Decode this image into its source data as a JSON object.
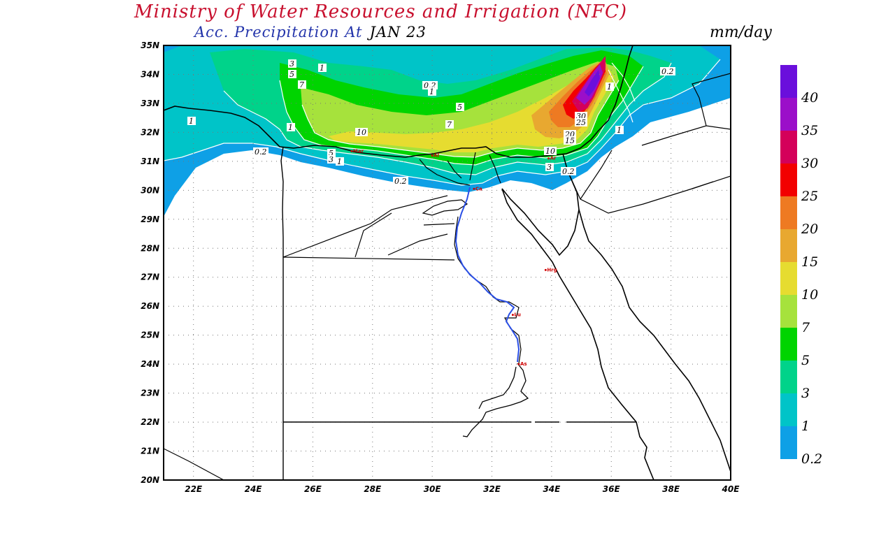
{
  "header": {
    "title": "Ministry of Water Resources and Irrigation (NFC)",
    "subtitle": "Acc. Precipitation  At",
    "date": "JAN 23",
    "units": "mm/day"
  },
  "map": {
    "lat_ticks": [
      "35N",
      "34N",
      "33N",
      "32N",
      "31N",
      "30N",
      "29N",
      "28N",
      "27N",
      "26N",
      "25N",
      "24N",
      "23N",
      "22N",
      "21N",
      "20N"
    ],
    "lon_ticks": [
      "22E",
      "24E",
      "26E",
      "28E",
      "30E",
      "32E",
      "34E",
      "36E",
      "38E",
      "40E"
    ],
    "lat_range": [
      20,
      35
    ],
    "lon_range": [
      21,
      40
    ],
    "grid": "dotted",
    "cities": [
      {
        "name": "Mar",
        "lon": 27.3,
        "lat": 31.35
      },
      {
        "name": "Al",
        "lon": 30.0,
        "lat": 31.2
      },
      {
        "name": "Ar",
        "lon": 33.9,
        "lat": 31.1
      },
      {
        "name": "Ca",
        "lon": 31.4,
        "lat": 30.05
      },
      {
        "name": "Hrg",
        "lon": 33.8,
        "lat": 27.25
      },
      {
        "name": "Lu",
        "lon": 32.7,
        "lat": 25.7
      },
      {
        "name": "As",
        "lon": 32.9,
        "lat": 24.0
      }
    ],
    "contour_labels": [
      "0.2",
      "1",
      "3",
      "5",
      "7",
      "10",
      "15",
      "20",
      "25",
      "30"
    ]
  },
  "legend": {
    "levels": [
      {
        "label": "40",
        "color": "#6a0fdc"
      },
      {
        "label": "35",
        "color": "#9b0fc9"
      },
      {
        "label": "30",
        "color": "#d4005a"
      },
      {
        "label": "25",
        "color": "#f20000"
      },
      {
        "label": "20",
        "color": "#ee7a22"
      },
      {
        "label": "15",
        "color": "#e8a830"
      },
      {
        "label": "10",
        "color": "#e6dc30"
      },
      {
        "label": "7",
        "color": "#a6e23c"
      },
      {
        "label": "5",
        "color": "#00d400"
      },
      {
        "label": "3",
        "color": "#00d38a"
      },
      {
        "label": "1",
        "color": "#00c4c8"
      },
      {
        "label": "0.2",
        "color": "#0ea0e6"
      }
    ],
    "bottom_color": "#0ea0e6"
  }
}
